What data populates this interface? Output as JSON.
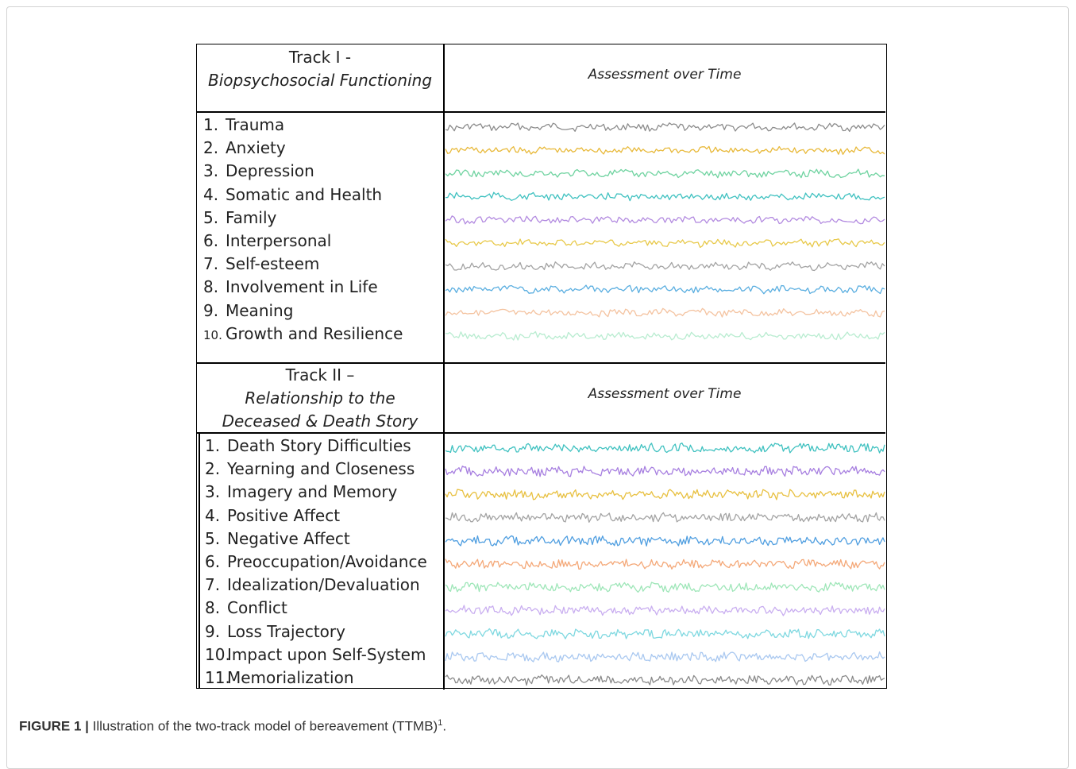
{
  "track1": {
    "title": "Track I -",
    "subtitle": "Biopsychosocial Functioning",
    "assessment_label": "Assessment over Time",
    "items": [
      {
        "num": "1.",
        "label": "Trauma",
        "color": "#8c8c8c"
      },
      {
        "num": "2.",
        "label": "Anxiety",
        "color": "#e8b93a"
      },
      {
        "num": "3.",
        "label": "Depression",
        "color": "#6fd3a0"
      },
      {
        "num": "4.",
        "label": "Somatic and Health",
        "color": "#3fc1c0"
      },
      {
        "num": "5.",
        "label": "Family",
        "color": "#b38be0"
      },
      {
        "num": "6.",
        "label": "Interpersonal",
        "color": "#e8c94a"
      },
      {
        "num": "7.",
        "label": "Self-esteem",
        "color": "#a3a3a3"
      },
      {
        "num": "8.",
        "label": "Involvement in Life",
        "color": "#5aaee0"
      },
      {
        "num": "9.",
        "label": "Meaning",
        "color": "#f4c3a0"
      },
      {
        "num": "10.",
        "label": "Growth and Resilience",
        "color": "#b8ecd0"
      }
    ]
  },
  "track2": {
    "title": "Track II –",
    "subtitle": "Relationship to the Deceased & Death Story",
    "assessment_label": "Assessment over Time",
    "items": [
      {
        "num": "1.",
        "label": "Death Story Difficulties",
        "color": "#3fc1c0"
      },
      {
        "num": "2.",
        "label": "Yearning and Closeness",
        "color": "#a77fe0"
      },
      {
        "num": "3.",
        "label": "Imagery and Memory",
        "color": "#e8c040"
      },
      {
        "num": "4.",
        "label": "Positive Affect",
        "color": "#a3a3a3"
      },
      {
        "num": "5.",
        "label": "Negative Affect",
        "color": "#4f9ee0"
      },
      {
        "num": "6.",
        "label": "Preoccupation/Avoidance",
        "color": "#f4a878"
      },
      {
        "num": "7.",
        "label": "Idealization/Devaluation",
        "color": "#9ee6b8"
      },
      {
        "num": "8.",
        "label": "Conflict",
        "color": "#c9aef0"
      },
      {
        "num": "9.",
        "label": "Loss Trajectory",
        "color": "#7fd8e0"
      },
      {
        "num": "10.",
        "label": "Impact upon Self-System",
        "color": "#a9c8f0"
      },
      {
        "num": "11.",
        "label": "Memorialization",
        "color": "#8a8a8a"
      }
    ]
  },
  "caption": {
    "label": "FIGURE 1 |",
    "text": " Illustration of the two-track model of bereavement (TTMB)",
    "sup": "1",
    "end": "."
  }
}
